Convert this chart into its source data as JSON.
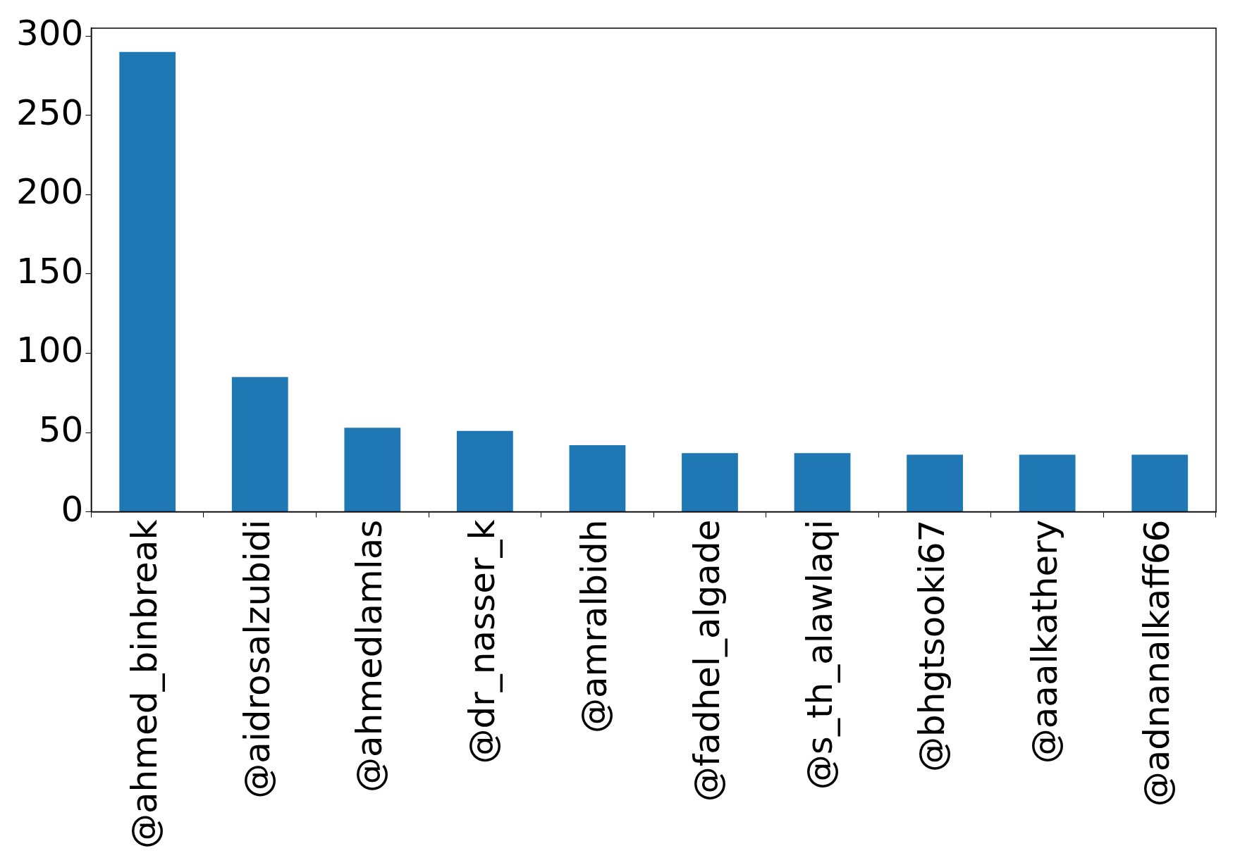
{
  "chart_data": {
    "type": "bar",
    "categories": [
      "@ahmed_binbreak",
      "@aidrosalzubidi",
      "@ahmedlamlas",
      "@dr_nasser_k",
      "@amralbidh",
      "@fadhel_algade",
      "@s_th_alawlaqi",
      "@bhgtsooki67",
      "@aaalkathery",
      "@adnanalkaff66"
    ],
    "values": [
      290,
      85,
      53,
      51,
      42,
      37,
      37,
      36,
      36,
      36
    ],
    "color": "#1f77b4",
    "ylim": [
      0,
      305
    ],
    "yticks": [
      0,
      50,
      100,
      150,
      200,
      250,
      300
    ],
    "grid": false,
    "legend": false
  }
}
